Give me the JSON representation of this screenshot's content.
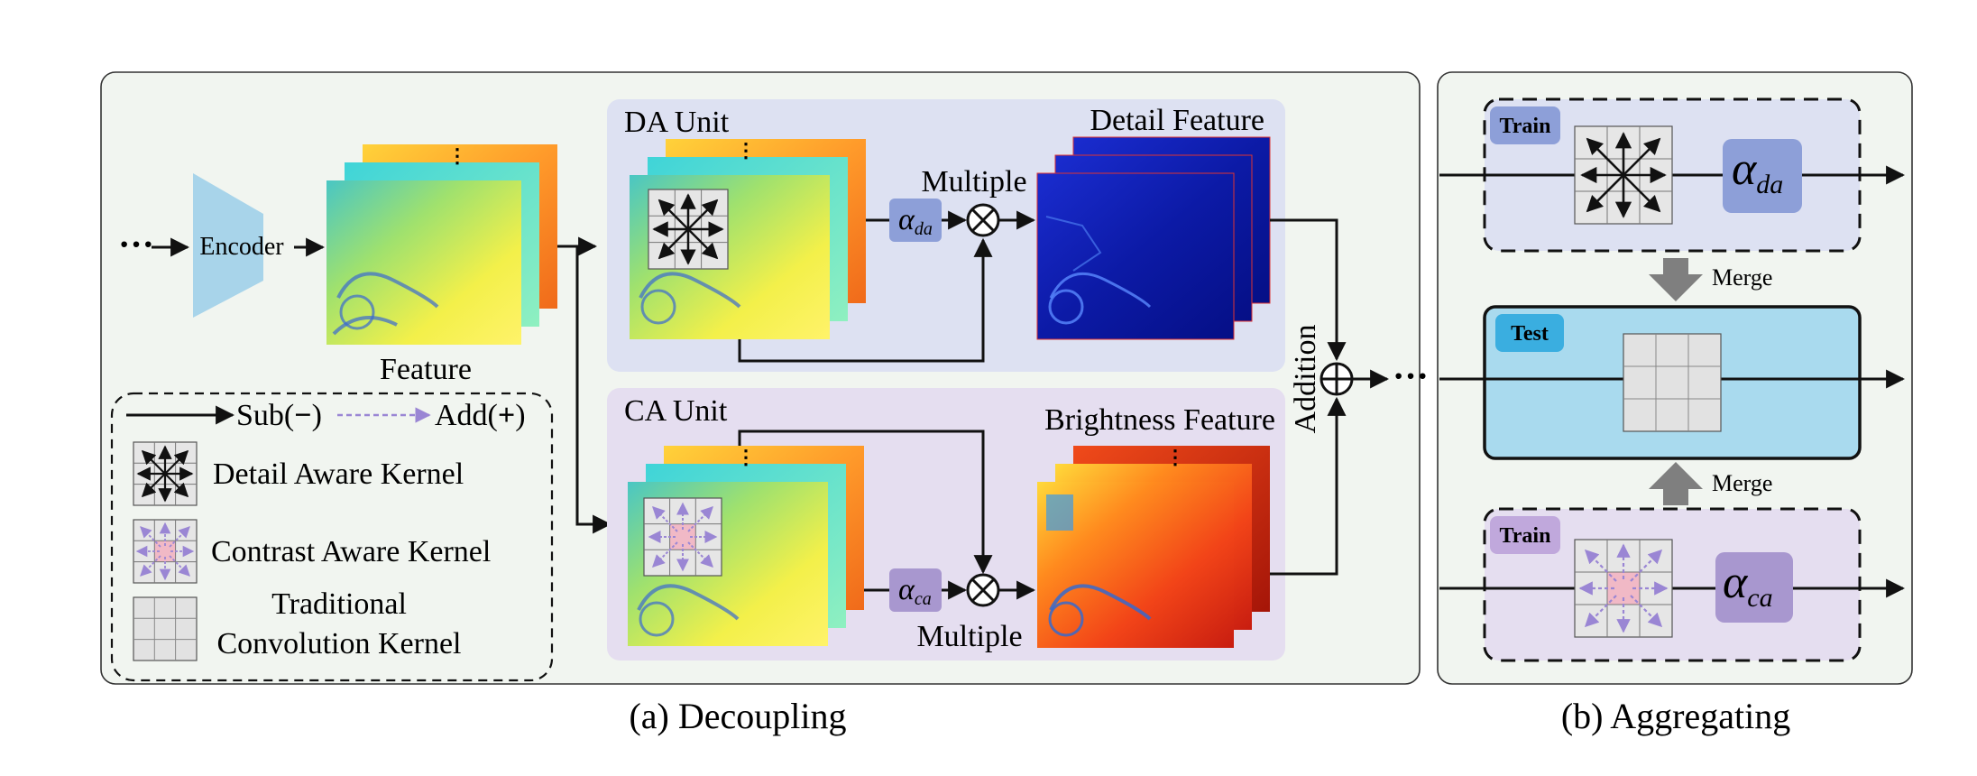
{
  "colors": {
    "panel_bg": "#f1f5f0",
    "da_unit_bg": "#dde1f2",
    "ca_unit_bg": "#e5def0",
    "test_bg": "#a9daee",
    "encoder": "#a8d4ea",
    "alpha_da": "#8d9fd8",
    "alpha_ca": "#a897cf",
    "kernel_purple": "#9a86d4",
    "kernel_pink": "#f1b9c6",
    "merge_arrow": "#7f7f7f"
  },
  "decoupling": {
    "caption": "(a) Decoupling",
    "input_dots": "···",
    "encoder_label": "Encoder",
    "feature_label": "Feature",
    "da_unit": {
      "title": "DA Unit",
      "multiple_label": "Multiple",
      "alpha": "α",
      "alpha_sub": "da",
      "output_label": "Detail Feature"
    },
    "ca_unit": {
      "title": "CA Unit",
      "multiple_label": "Multiple",
      "alpha": "α",
      "alpha_sub": "ca",
      "output_label": "Brightness Feature"
    },
    "addition_label": "Addition",
    "output_dots": "···",
    "legend": {
      "sub": "Sub(",
      "sub_symbol": "−",
      "add": "Add(",
      "add_symbol": "+",
      "close_paren": ")",
      "detail_kernel": "Detail Aware Kernel",
      "contrast_kernel": "Contrast Aware Kernel",
      "traditional_line1": "Traditional",
      "traditional_line2": "Convolution Kernel"
    }
  },
  "aggregating": {
    "caption": "(b)  Aggregating",
    "train_top": "Train",
    "alpha_top": "α",
    "alpha_top_sub": "da",
    "merge_top": "Merge",
    "test": "Test",
    "merge_bottom": "Merge",
    "train_bottom": "Train",
    "alpha_bottom": "α",
    "alpha_bottom_sub": "ca"
  }
}
